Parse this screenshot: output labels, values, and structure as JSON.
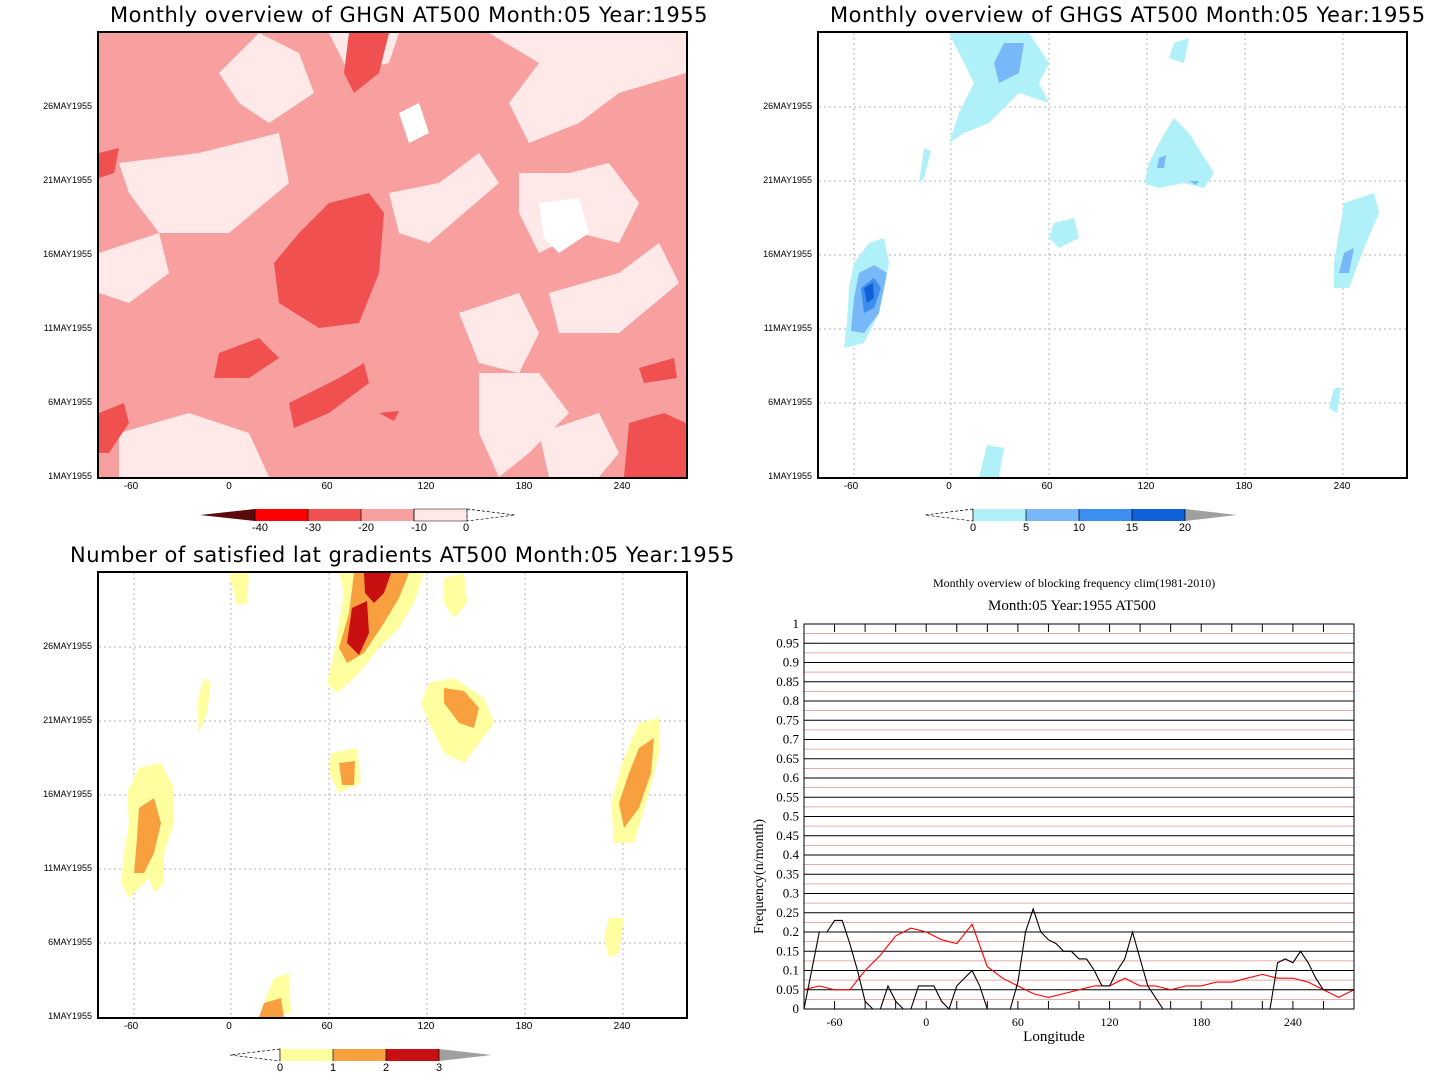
{
  "panels": {
    "ghgn": {
      "title": "Monthly overview of GHGN AT500 Month:05 Year:1955"
    },
    "ghgs": {
      "title": "Monthly overview of GHGS AT500 Month:05 Year:1955"
    },
    "nsat": {
      "title": "Number of satisfied lat gradients AT500 Month:05 Year:1955"
    }
  },
  "axes": {
    "dates": [
      "26MAY1955",
      "21MAY1955",
      "16MAY1955",
      "11MAY1955",
      "6MAY1955",
      "1MAY1955"
    ],
    "lons": [
      "-60",
      "0",
      "60",
      "120",
      "180",
      "240"
    ]
  },
  "colorbars": {
    "ghgn": {
      "labels": [
        "-40",
        "-30",
        "-20",
        "-10",
        "0"
      ],
      "colors": [
        "#5a0a0a",
        "#ff0000",
        "#f05050",
        "#f8a0a0",
        "#ffe8e8"
      ]
    },
    "ghgs": {
      "labels": [
        "0",
        "5",
        "10",
        "15",
        "20"
      ],
      "colors": [
        "#b0f0f8",
        "#78b8f8",
        "#3c8ef0",
        "#1060d8",
        "#a0a0a0"
      ]
    },
    "nsat": {
      "labels": [
        "0",
        "1",
        "2",
        "3"
      ],
      "colors": [
        "#ffffa0",
        "#f8a040",
        "#c81010",
        "#a0a0a0"
      ]
    }
  },
  "blocking": {
    "title1": "Monthly overview of blocking frequency clim(1981-2010)",
    "title2": "Month:05 Year:1955  AT500",
    "xlabel": "Longitude",
    "ylabel": "Frequency(n/month)",
    "yticks": [
      "1",
      "0.95",
      "0.9",
      "0.85",
      "0.8",
      "0.75",
      "0.7",
      "0.65",
      "0.6",
      "0.55",
      "0.5",
      "0.45",
      "0.4",
      "0.35",
      "0.3",
      "0.25",
      "0.2",
      "0.15",
      "0.1",
      "0.05",
      "0"
    ],
    "xticks": [
      "-60",
      "0",
      "60",
      "120",
      "180",
      "240"
    ]
  },
  "chart_data": [
    {
      "type": "heatmap",
      "title": "Monthly overview of GHGN AT500 Month:05 Year:1955",
      "xlabel": "",
      "ylabel": "",
      "x_ticks": [
        -60,
        0,
        60,
        120,
        180,
        240
      ],
      "y_ticks": [
        "1MAY1955",
        "6MAY1955",
        "11MAY1955",
        "16MAY1955",
        "21MAY1955",
        "26MAY1955"
      ],
      "levels": [
        -40,
        -30,
        -20,
        -10,
        0
      ]
    },
    {
      "type": "heatmap",
      "title": "Monthly overview of GHGS AT500 Month:05 Year:1955",
      "x_ticks": [
        -60,
        0,
        60,
        120,
        180,
        240
      ],
      "levels": [
        0,
        5,
        10,
        15,
        20
      ]
    },
    {
      "type": "heatmap",
      "title": "Number of satisfied lat gradients AT500 Month:05 Year:1955",
      "x_ticks": [
        -60,
        0,
        60,
        120,
        180,
        240
      ],
      "levels": [
        0,
        1,
        2,
        3
      ]
    },
    {
      "type": "line",
      "title": "Monthly overview of blocking frequency clim(1981-2010)",
      "subtitle": "Month:05 Year:1955  AT500",
      "xlabel": "Longitude",
      "ylabel": "Frequency(n/month)",
      "xlim": [
        -80,
        280
      ],
      "ylim": [
        0,
        1
      ],
      "series": [
        {
          "color": "#ff0000",
          "x": [
            -80,
            -70,
            -60,
            -50,
            -40,
            -30,
            -20,
            -10,
            0,
            10,
            20,
            30,
            40,
            50,
            60,
            70,
            80,
            90,
            100,
            110,
            120,
            130,
            140,
            150,
            160,
            170,
            180,
            190,
            200,
            210,
            220,
            230,
            240,
            250,
            260,
            270,
            280
          ],
          "values": [
            0.05,
            0.06,
            0.05,
            0.05,
            0.1,
            0.14,
            0.19,
            0.21,
            0.2,
            0.18,
            0.17,
            0.22,
            0.11,
            0.08,
            0.06,
            0.04,
            0.03,
            0.04,
            0.05,
            0.06,
            0.06,
            0.08,
            0.06,
            0.06,
            0.05,
            0.06,
            0.06,
            0.07,
            0.07,
            0.08,
            0.09,
            0.08,
            0.08,
            0.07,
            0.05,
            0.03,
            0.05
          ]
        },
        {
          "color": "#000000",
          "x": [
            -80,
            -70,
            -65,
            -60,
            -55,
            -50,
            -45,
            -40,
            -35,
            -30,
            -25,
            -20,
            -15,
            -10,
            -5,
            0,
            5,
            10,
            15,
            20,
            25,
            30,
            35,
            40,
            45,
            50,
            55,
            60,
            65,
            70,
            75,
            80,
            85,
            90,
            95,
            100,
            105,
            110,
            115,
            120,
            125,
            130,
            135,
            140,
            145,
            150,
            155,
            160,
            180,
            200,
            220,
            225,
            230,
            235,
            240,
            245,
            250,
            255,
            260,
            265,
            270,
            280
          ],
          "values": [
            0,
            0.2,
            0.2,
            0.23,
            0.23,
            0.17,
            0.1,
            0.02,
            0,
            0,
            0.06,
            0.02,
            0,
            0,
            0.06,
            0.06,
            0.06,
            0.02,
            0,
            0.06,
            0.08,
            0.1,
            0.06,
            0,
            0,
            0,
            0,
            0.07,
            0.2,
            0.26,
            0.2,
            0.18,
            0.17,
            0.15,
            0.15,
            0.13,
            0.13,
            0.1,
            0.06,
            0.06,
            0.1,
            0.13,
            0.2,
            0.13,
            0.06,
            0.03,
            0,
            0,
            0,
            0,
            0,
            0,
            0.12,
            0.13,
            0.12,
            0.15,
            0.12,
            0.08,
            0.05,
            0.05,
            0.05,
            0.05
          ]
        }
      ]
    }
  ]
}
